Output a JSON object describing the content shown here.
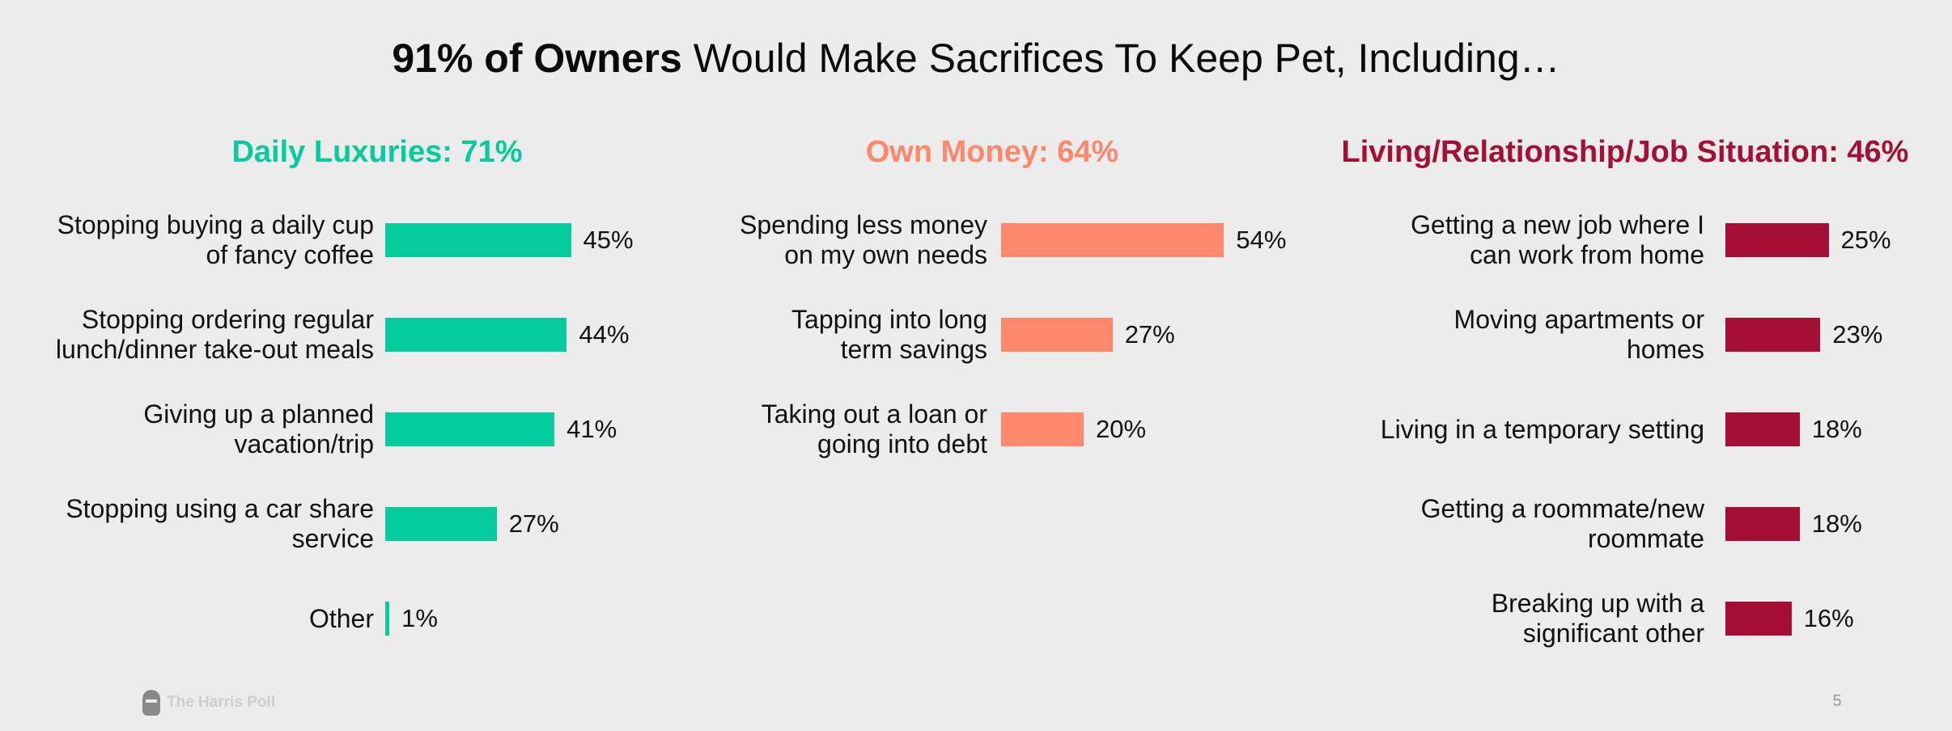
{
  "title": {
    "bold": "91% of Owners",
    "rest": "Would Make Sacrifices To Keep Pet, Including…"
  },
  "chart_data": [
    {
      "type": "bar",
      "orientation": "horizontal",
      "title": "Daily Luxuries: 71%",
      "color": "#05cc9c",
      "categories": [
        "Stopping buying a daily cup of fancy coffee",
        "Stopping ordering regular lunch/dinner take-out meals",
        "Giving up a planned vacation/trip",
        "Stopping using a car share service",
        "Other"
      ],
      "values": [
        45,
        44,
        41,
        27,
        1
      ],
      "value_labels": [
        "45%",
        "44%",
        "41%",
        "27%",
        "1%"
      ],
      "xlim": [
        0,
        100
      ]
    },
    {
      "type": "bar",
      "orientation": "horizontal",
      "title": "Own Money: 64%",
      "color": "#ff876b",
      "categories": [
        "Spending less money on my own needs",
        "Tapping into long term savings",
        "Taking out a loan or going into debt"
      ],
      "values": [
        54,
        27,
        20
      ],
      "value_labels": [
        "54%",
        "27%",
        "20%"
      ],
      "xlim": [
        0,
        100
      ]
    },
    {
      "type": "bar",
      "orientation": "horizontal",
      "title": "Living/Relationship/Job Situation: 46%",
      "color": "#a50f36",
      "categories": [
        "Getting a new job where I can work from home",
        "Moving apartments or homes",
        "Living in a temporary setting",
        "Getting a roommate/new roommate",
        "Breaking up with a significant other"
      ],
      "values": [
        25,
        23,
        18,
        18,
        16
      ],
      "value_labels": [
        "25%",
        "23%",
        "18%",
        "18%",
        "16%"
      ],
      "xlim": [
        0,
        100
      ]
    }
  ],
  "footer": {
    "logo_text": "The Harris Poll",
    "page_number": "5"
  }
}
